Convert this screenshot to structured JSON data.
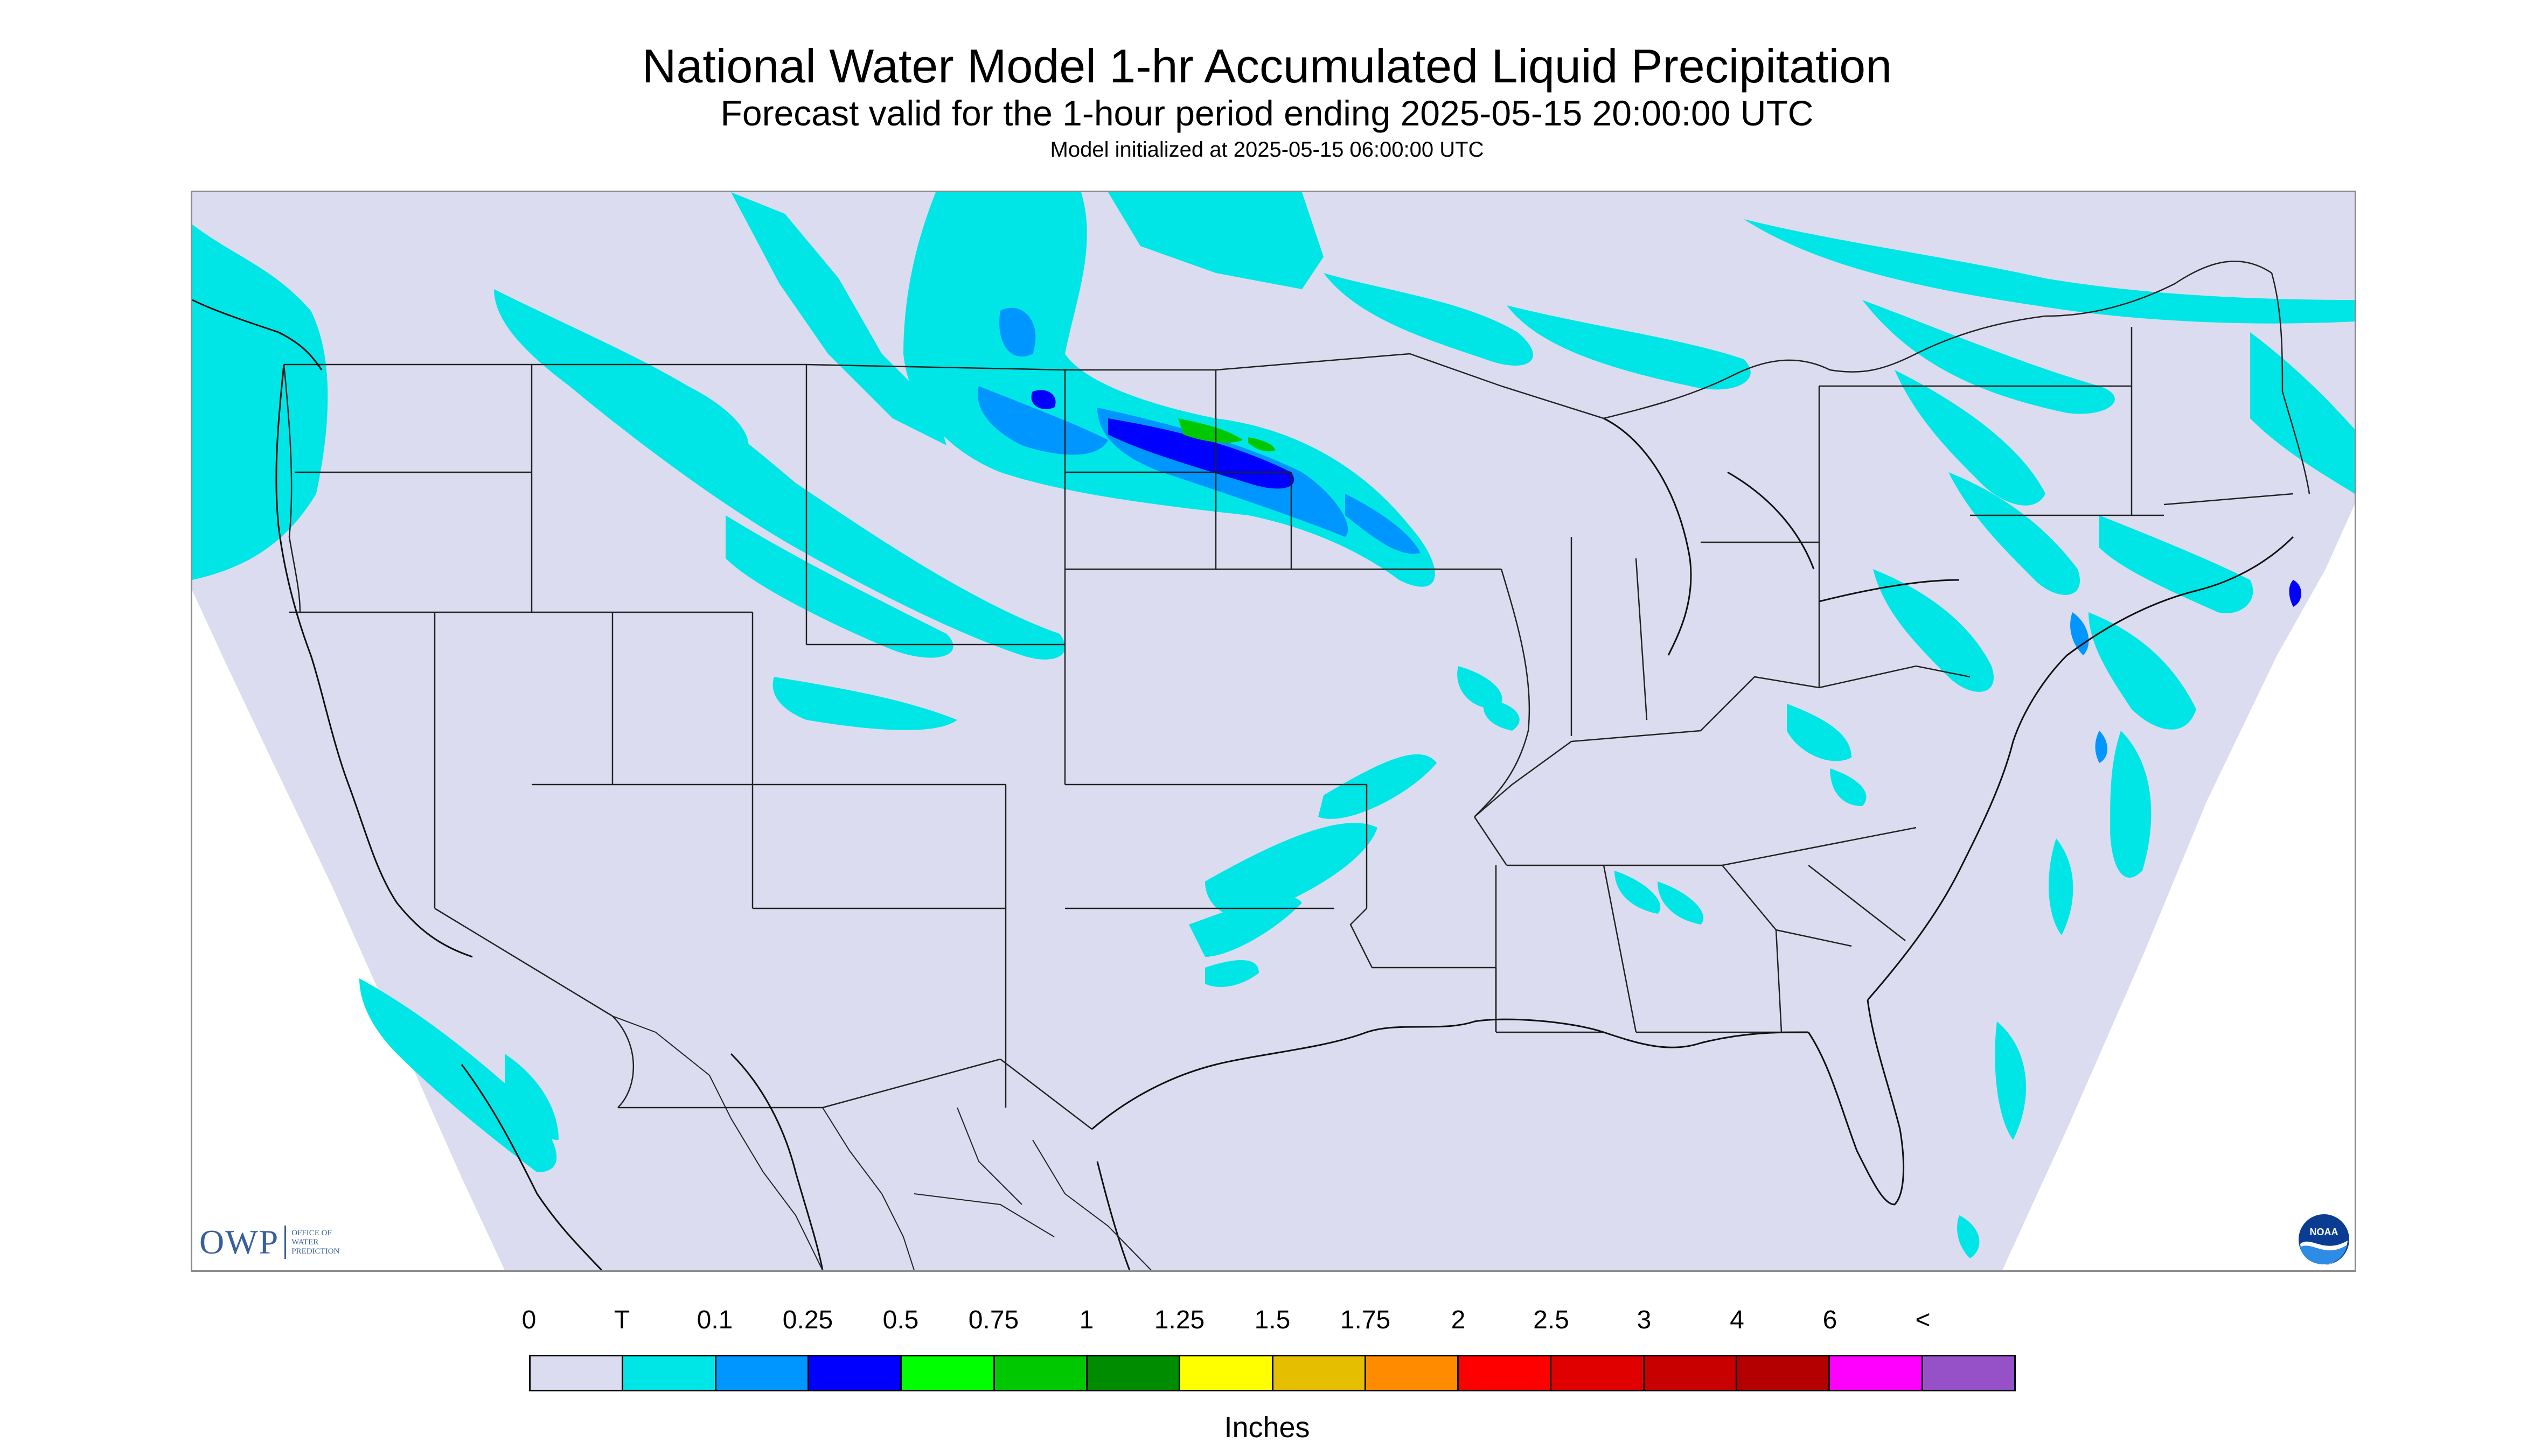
{
  "header": {
    "title": "National Water Model 1-hr Accumulated Liquid Precipitation",
    "subtitle": "Forecast valid for the 1-hour period ending 2025-05-15 20:00:00 UTC",
    "init": "Model initialized at 2025-05-15 06:00:00 UTC"
  },
  "legend": {
    "labels": [
      "0",
      "T",
      "0.1",
      "0.25",
      "0.5",
      "0.75",
      "1",
      "1.25",
      "1.5",
      "1.75",
      "2",
      "2.5",
      "3",
      "4",
      "6",
      "<"
    ],
    "colors": [
      "#dcdcf0",
      "#00e6e6",
      "#0096ff",
      "#0000ff",
      "#00ff00",
      "#00c800",
      "#008c00",
      "#ffff00",
      "#e6be00",
      "#ff8c00",
      "#ff0000",
      "#e00000",
      "#c80000",
      "#b40000",
      "#ff00ff",
      "#9650c8"
    ],
    "units": "Inches"
  },
  "logos": {
    "owp_mark": "OWP",
    "owp_text": [
      "OFFICE OF",
      "WATER",
      "PREDICTION"
    ],
    "noaa_text": "NOAA"
  },
  "map": {
    "domain_fill": "#dcdcf0",
    "precip_colors": {
      "trace": "#00e6e6",
      "light": "#0096ff",
      "moderate": "#0000ff",
      "heavy": "#00c800"
    }
  }
}
